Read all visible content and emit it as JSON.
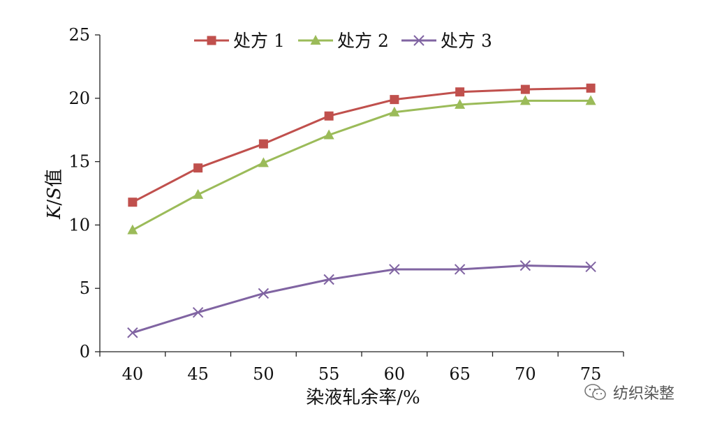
{
  "chart_data": {
    "type": "line",
    "x": [
      40,
      45,
      50,
      55,
      60,
      65,
      70,
      75
    ],
    "series": [
      {
        "name": "处方 1",
        "color": "#c0504d",
        "marker": "square",
        "values": [
          11.8,
          14.5,
          16.4,
          18.6,
          19.9,
          20.5,
          20.7,
          20.8
        ]
      },
      {
        "name": "处方 2",
        "color": "#9bbb59",
        "marker": "triangle",
        "values": [
          9.6,
          12.4,
          14.9,
          17.1,
          18.9,
          19.5,
          19.8,
          19.8
        ]
      },
      {
        "name": "处方 3",
        "color": "#8064a2",
        "marker": "x",
        "values": [
          1.5,
          3.1,
          4.6,
          5.7,
          6.5,
          6.5,
          6.8,
          6.7
        ]
      }
    ],
    "xlabel": "染液轧余率/%",
    "ylabel": {
      "italic_k": "K",
      "slash": "/",
      "italic_s": "S",
      "suffix": "值"
    },
    "ylim": [
      0,
      25
    ],
    "yticks": [
      0,
      5,
      10,
      15,
      20,
      25
    ],
    "grid": false,
    "legend_position": "top"
  },
  "watermark": {
    "text": "纺织染整",
    "icon": "wechat-icon"
  }
}
